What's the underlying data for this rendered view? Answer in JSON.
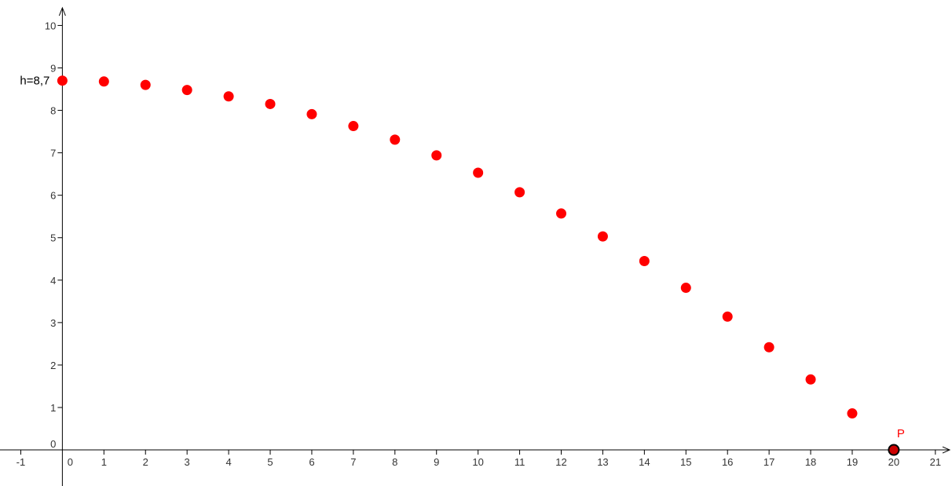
{
  "chart_data": {
    "type": "scatter",
    "title": "",
    "xlabel": "",
    "ylabel": "",
    "xlim": [
      -1.5,
      21.4
    ],
    "ylim": [
      -0.85,
      10.6
    ],
    "x_ticks": [
      -1,
      0,
      1,
      2,
      3,
      4,
      5,
      6,
      7,
      8,
      9,
      10,
      11,
      12,
      13,
      14,
      15,
      16,
      17,
      18,
      19,
      20,
      21
    ],
    "y_ticks": [
      0,
      1,
      2,
      3,
      4,
      5,
      6,
      7,
      8,
      9,
      10
    ],
    "grid": false,
    "series": [
      {
        "color": "#ff0000",
        "points": [
          {
            "x": 0,
            "y": 8.7
          },
          {
            "x": 1,
            "y": 8.68
          },
          {
            "x": 2,
            "y": 8.6
          },
          {
            "x": 3,
            "y": 8.48
          },
          {
            "x": 4,
            "y": 8.33
          },
          {
            "x": 5,
            "y": 8.15
          },
          {
            "x": 6,
            "y": 7.91
          },
          {
            "x": 7,
            "y": 7.63
          },
          {
            "x": 8,
            "y": 7.31
          },
          {
            "x": 9,
            "y": 6.94
          },
          {
            "x": 10,
            "y": 6.53
          },
          {
            "x": 11,
            "y": 6.07
          },
          {
            "x": 12,
            "y": 5.57
          },
          {
            "x": 13,
            "y": 5.03
          },
          {
            "x": 14,
            "y": 4.45
          },
          {
            "x": 15,
            "y": 3.82
          },
          {
            "x": 16,
            "y": 3.14
          },
          {
            "x": 17,
            "y": 2.42
          },
          {
            "x": 18,
            "y": 1.66
          },
          {
            "x": 19,
            "y": 0.86
          }
        ]
      }
    ],
    "annotations": {
      "h_label": "h=8,7",
      "point_P": {
        "label": "P",
        "x": 20,
        "y": 0,
        "fill": "#cc0000",
        "label_color": "#ff0000"
      }
    },
    "axis_color": "#000000"
  }
}
